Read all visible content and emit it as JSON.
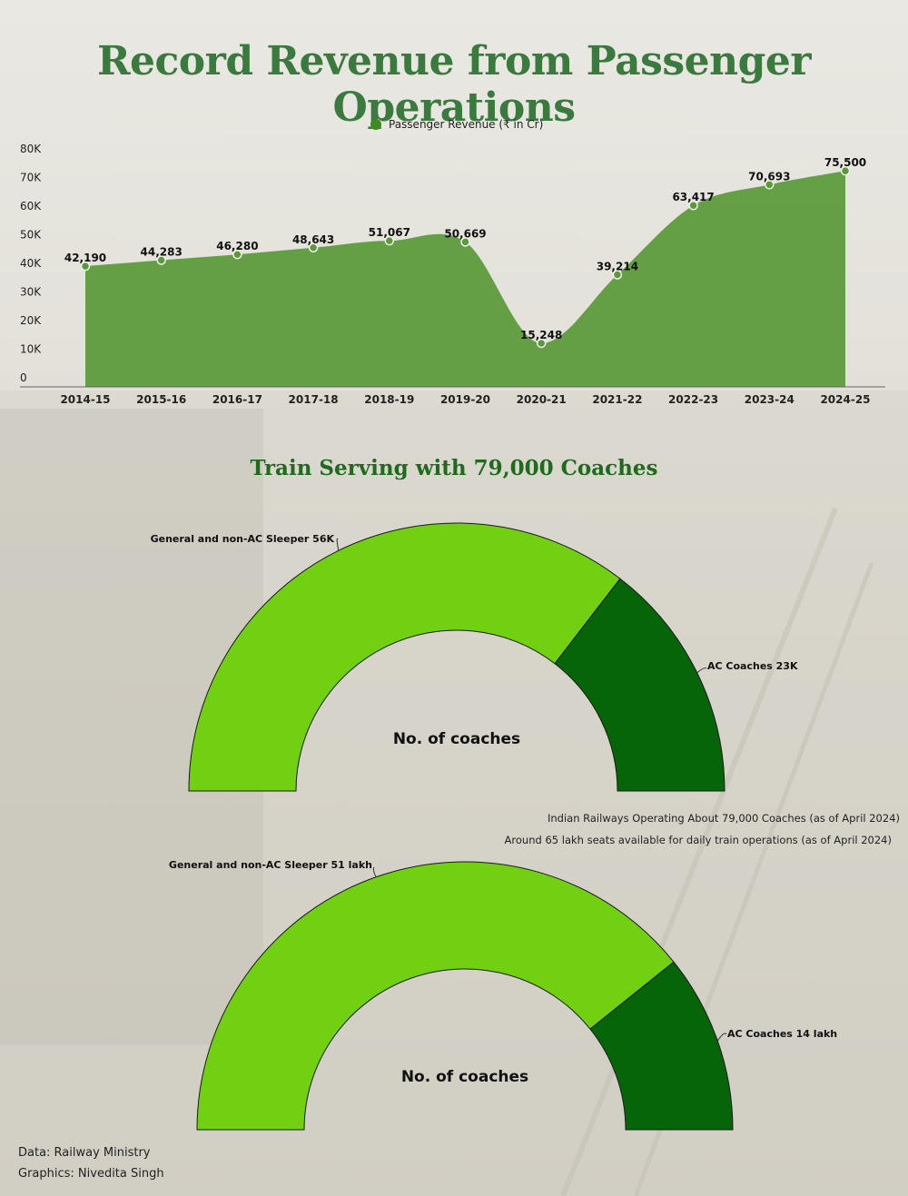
{
  "title": "Record Revenue from Passenger Operations",
  "colors": {
    "title": "#3b7a3f",
    "area": "#5a9a3a",
    "gauge_light": "#72d012",
    "gauge_dark": "#066409"
  },
  "chart_data": [
    {
      "type": "area",
      "legend": "Passenger Revenue (₹ in Cr)",
      "legend_position": "top-center",
      "grid": false,
      "categories": [
        "2014-15",
        "2015-16",
        "2016-17",
        "2017-18",
        "2018-19",
        "2019-20",
        "2020-21",
        "2021-22",
        "2022-23",
        "2023-24",
        "2024-25"
      ],
      "values": [
        42190,
        44283,
        46280,
        48643,
        51067,
        50669,
        15248,
        39214,
        63417,
        70693,
        75500
      ],
      "data_labels": [
        "42,190",
        "44,283",
        "46,280",
        "48,643",
        "51,067",
        "50,669",
        "15,248",
        "39,214",
        "63,417",
        "70,693",
        "75,500"
      ],
      "y_ticks": [
        "0",
        "10K",
        "20K",
        "30K",
        "40K",
        "50K",
        "60K",
        "70K",
        "80K"
      ],
      "ylim": [
        0,
        80000
      ]
    },
    {
      "type": "pie",
      "style": "semi-donut",
      "title": "Train Serving with 79,000 Coaches",
      "center_label": "No. of coaches",
      "slices": [
        {
          "label": "General and non-AC Sleeper 56K",
          "value": 56000
        },
        {
          "label": "AC Coaches 23K",
          "value": 23000
        }
      ]
    },
    {
      "type": "pie",
      "style": "semi-donut",
      "center_label": "No. of coaches",
      "slices": [
        {
          "label": "General and non-AC Sleeper 51 lakh",
          "value": 51
        },
        {
          "label": "AC Coaches 14 lakh",
          "value": 14
        }
      ]
    }
  ],
  "notes": [
    "Indian Railways Operating About 79,000 Coaches (as of April 2024)",
    "Around 65 lakh seats available for daily train operations (as of April 2024)"
  ],
  "credits": {
    "data": "Data: Railway Ministry",
    "graphics": "Graphics: Nivedita Singh"
  }
}
